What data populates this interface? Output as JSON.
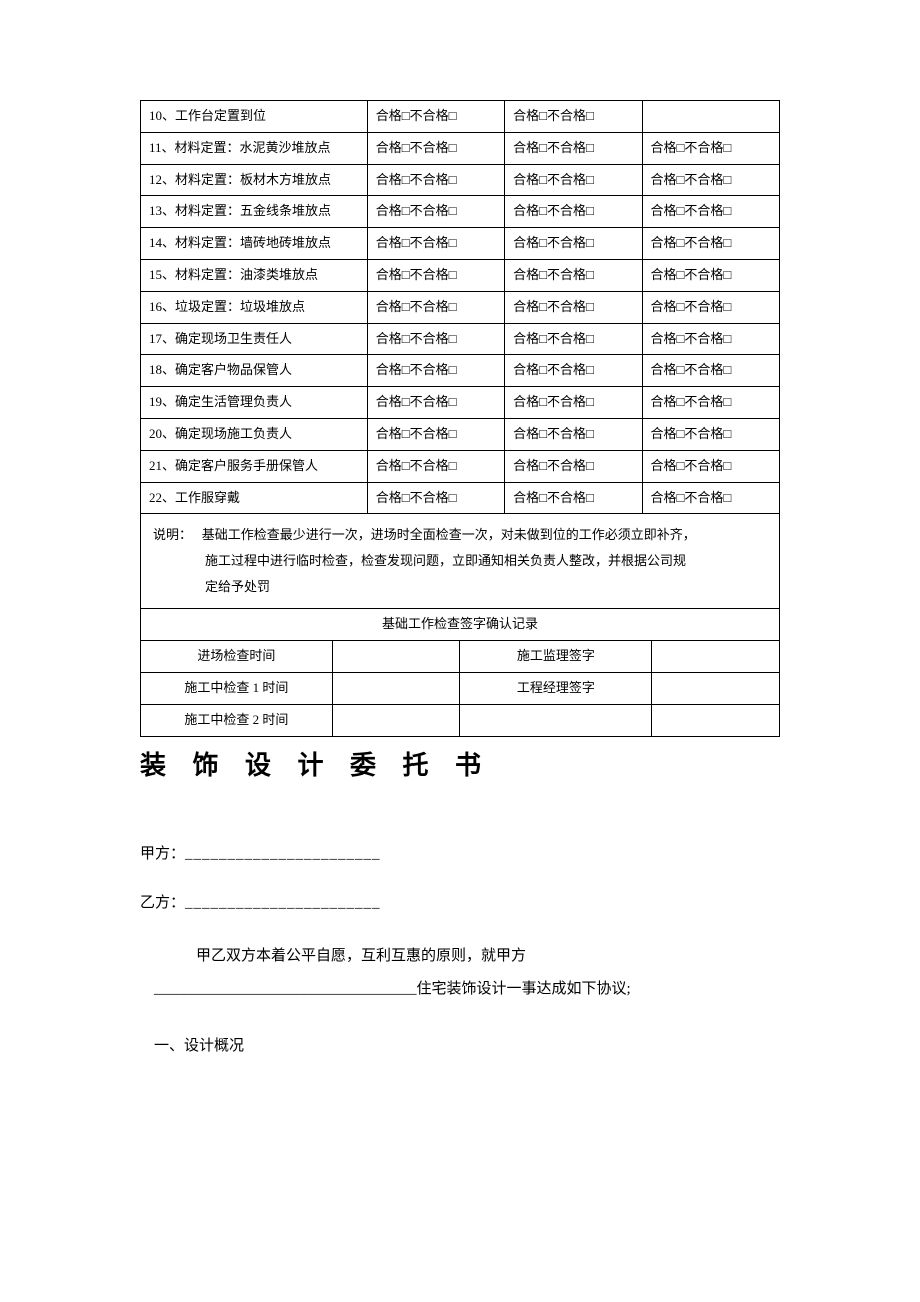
{
  "table": {
    "check_pass": "合格□不合格□",
    "rows": [
      {
        "label": "10、工作台定置到位",
        "c1": true,
        "c2": true,
        "c3": false
      },
      {
        "label": "11、材料定置：水泥黄沙堆放点",
        "c1": true,
        "c2": true,
        "c3": true
      },
      {
        "label": "12、材料定置：板材木方堆放点",
        "c1": true,
        "c2": true,
        "c3": true
      },
      {
        "label": "13、材料定置：五金线条堆放点",
        "c1": true,
        "c2": true,
        "c3": true
      },
      {
        "label": "14、材料定置：墙砖地砖堆放点",
        "c1": true,
        "c2": true,
        "c3": true
      },
      {
        "label": "15、材料定置：油漆类堆放点",
        "c1": true,
        "c2": true,
        "c3": true
      },
      {
        "label": "16、垃圾定置：垃圾堆放点",
        "c1": true,
        "c2": true,
        "c3": true
      },
      {
        "label": "17、确定现场卫生责任人",
        "c1": true,
        "c2": true,
        "c3": true
      },
      {
        "label": "18、确定客户物品保管人",
        "c1": true,
        "c2": true,
        "c3": true
      },
      {
        "label": "19、确定生活管理负责人",
        "c1": true,
        "c2": true,
        "c3": true
      },
      {
        "label": "20、确定现场施工负责人",
        "c1": true,
        "c2": true,
        "c3": true
      },
      {
        "label": "21、确定客户服务手册保管人",
        "c1": true,
        "c2": true,
        "c3": true
      },
      {
        "label": "22、工作服穿戴",
        "c1": true,
        "c2": true,
        "c3": true
      }
    ],
    "note_prefix": "说明：",
    "note_line1": "基础工作检查最少进行一次，进场时全面检查一次，对未做到位的工作必须立即补齐，",
    "note_line2": "施工过程中进行临时检查，检查发现问题，立即通知相关负责人整改，并根据公司规",
    "note_line3": "定给予处罚",
    "sign_header": "基础工作检查签字确认记录",
    "sign_rows": {
      "r1c1": "进场检查时间",
      "r1c3": "施工监理签字",
      "r2c1": "施工中检查 1 时间",
      "r2c3": "工程经理签字",
      "r3c1": "施工中检查 2 时间"
    }
  },
  "doc": {
    "title": "装 饰 设 计 委 托 书",
    "party_a_label": "甲方：",
    "party_a_line": "_______________________",
    "party_b_label": "乙方：",
    "party_b_line": "_______________________",
    "body1": "甲乙双方本着公平自愿，互利互惠的原则，就甲方",
    "body2_dash": "___________________________________住宅装饰设计一事达成如下协议;",
    "section1": "一、设计概况"
  }
}
